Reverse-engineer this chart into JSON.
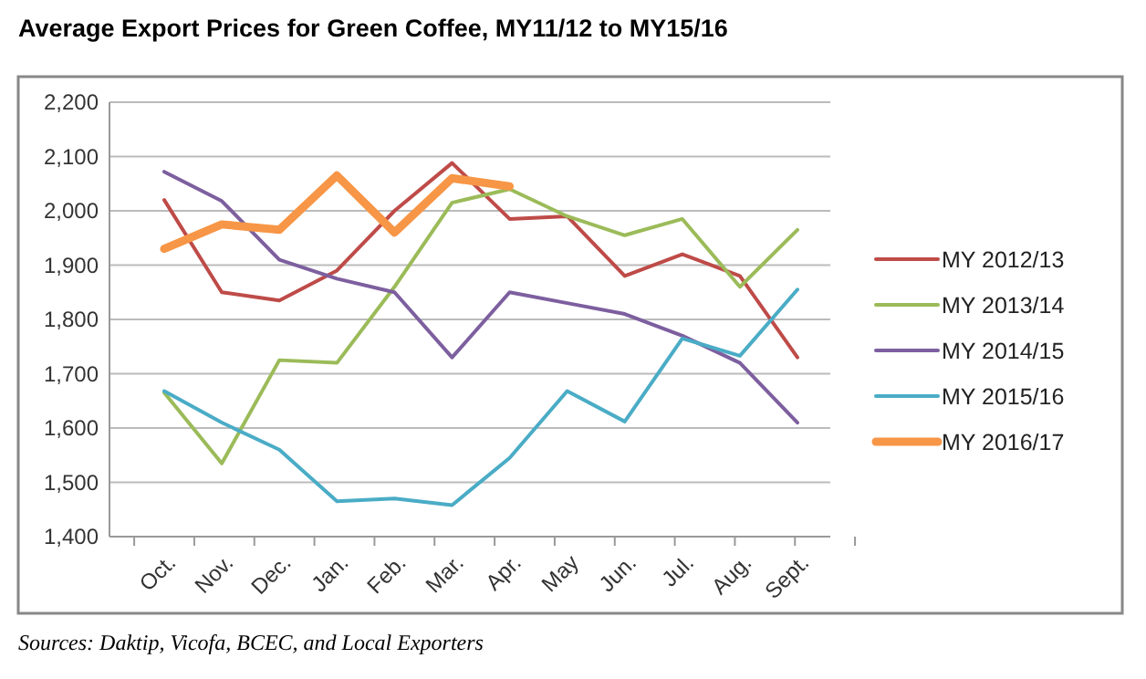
{
  "chart_data": {
    "type": "line",
    "title": "Average Export Prices for Green Coffee, MY11/12 to MY15/16",
    "categories": [
      "Oct.",
      "Nov.",
      "Dec.",
      "Jan.",
      "Feb.",
      "Mar.",
      "Apr.",
      "May",
      "Jun.",
      "Jul.",
      "Aug.",
      "Sept."
    ],
    "series": [
      {
        "name": "MY 2012/13",
        "color": "#be4b48",
        "values": [
          2020,
          1850,
          1835,
          1890,
          2000,
          2088,
          1985,
          1990,
          1880,
          1920,
          1880,
          1730
        ]
      },
      {
        "name": "MY 2013/14",
        "color": "#9bbb59",
        "values": [
          1665,
          1535,
          1725,
          1720,
          1860,
          2015,
          2040,
          1990,
          1955,
          1985,
          1860,
          1965
        ]
      },
      {
        "name": "MY 2014/15",
        "color": "#7d5f9f",
        "values": [
          2072,
          2018,
          1910,
          1875,
          1850,
          1730,
          1850,
          1830,
          1810,
          1770,
          1720,
          1610
        ]
      },
      {
        "name": "MY 2015/16",
        "color": "#4aacc6",
        "values": [
          1668,
          1610,
          1560,
          1465,
          1470,
          1458,
          1545,
          1668,
          1612,
          1765,
          1733,
          1855
        ]
      },
      {
        "name": "MY 2016/17",
        "color": "#f79646",
        "values": [
          1930,
          1975,
          1965,
          2065,
          1960,
          2060,
          2045,
          null,
          null,
          null,
          null,
          null
        ]
      }
    ],
    "ylim": [
      1400,
      2200
    ],
    "yticks": [
      {
        "value": 1400,
        "label": "1,400"
      },
      {
        "value": 1500,
        "label": "1,500"
      },
      {
        "value": 1600,
        "label": "1,600"
      },
      {
        "value": 1700,
        "label": "1,700"
      },
      {
        "value": 1800,
        "label": "1,800"
      },
      {
        "value": 1900,
        "label": "1,900"
      },
      {
        "value": 2000,
        "label": "2,000"
      },
      {
        "value": 2100,
        "label": "2,100"
      },
      {
        "value": 2200,
        "label": "2,200"
      }
    ],
    "grid": "y",
    "legend": "right",
    "marker": "none",
    "line_style": "solid",
    "annotations": [
      "Sources: Daktip, Vicofa, BCEC, and Local Exporters"
    ]
  }
}
